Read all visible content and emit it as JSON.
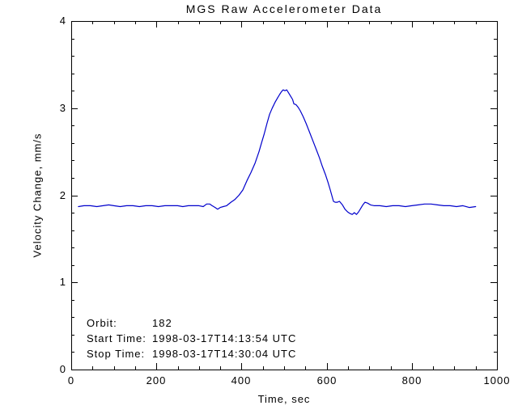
{
  "title": "MGS Raw Accelerometer Data",
  "colors": {
    "background": "#ffffff",
    "axis": "#000000",
    "text": "#000000",
    "line": "#0000cc"
  },
  "annotations": [
    {
      "label": "Orbit:",
      "value": "182"
    },
    {
      "label": "Start Time:",
      "value": "1998-03-17T14:13:54 UTC"
    },
    {
      "label": "Stop Time:",
      "value": "1998-03-17T14:30:04 UTC"
    }
  ],
  "chart_data": {
    "type": "line",
    "title": "MGS Raw Accelerometer Data",
    "xlabel": "Time, sec",
    "ylabel": "Velocity Change, mm/s",
    "xlim": [
      0,
      1000
    ],
    "ylim": [
      0,
      4
    ],
    "grid": false,
    "legend": "none",
    "xticks": {
      "major": [
        0,
        200,
        400,
        600,
        800,
        1000
      ],
      "labels": [
        "0",
        "200",
        "400",
        "600",
        "800",
        "1000"
      ],
      "minor_interval": 50
    },
    "yticks": {
      "major": [
        0,
        1,
        2,
        3,
        4
      ],
      "labels": [
        "0",
        "1",
        "2",
        "3",
        "4"
      ],
      "minor_interval": 0.2
    },
    "series": [
      {
        "name": "velocity-change",
        "color": "#0000cc",
        "points": [
          [
            17,
            1.87
          ],
          [
            30,
            1.88
          ],
          [
            45,
            1.88
          ],
          [
            60,
            1.87
          ],
          [
            75,
            1.88
          ],
          [
            88,
            1.89
          ],
          [
            100,
            1.88
          ],
          [
            115,
            1.87
          ],
          [
            130,
            1.88
          ],
          [
            145,
            1.88
          ],
          [
            160,
            1.87
          ],
          [
            175,
            1.88
          ],
          [
            190,
            1.88
          ],
          [
            205,
            1.87
          ],
          [
            220,
            1.88
          ],
          [
            235,
            1.88
          ],
          [
            250,
            1.88
          ],
          [
            262,
            1.87
          ],
          [
            275,
            1.88
          ],
          [
            289,
            1.88
          ],
          [
            300,
            1.88
          ],
          [
            310,
            1.87
          ],
          [
            318,
            1.9
          ],
          [
            325,
            1.9
          ],
          [
            331,
            1.88
          ],
          [
            338,
            1.86
          ],
          [
            344,
            1.84
          ],
          [
            350,
            1.86
          ],
          [
            357,
            1.87
          ],
          [
            365,
            1.88
          ],
          [
            375,
            1.92
          ],
          [
            384,
            1.95
          ],
          [
            394,
            2.0
          ],
          [
            403,
            2.06
          ],
          [
            413,
            2.17
          ],
          [
            422,
            2.26
          ],
          [
            432,
            2.37
          ],
          [
            441,
            2.5
          ],
          [
            447,
            2.6
          ],
          [
            453,
            2.7
          ],
          [
            460,
            2.83
          ],
          [
            466,
            2.93
          ],
          [
            472,
            3.0
          ],
          [
            479,
            3.07
          ],
          [
            485,
            3.12
          ],
          [
            490,
            3.16
          ],
          [
            494,
            3.19
          ],
          [
            498,
            3.21
          ],
          [
            502,
            3.2
          ],
          [
            506,
            3.21
          ],
          [
            510,
            3.18
          ],
          [
            515,
            3.14
          ],
          [
            520,
            3.1
          ],
          [
            523,
            3.05
          ],
          [
            528,
            3.04
          ],
          [
            533,
            3.01
          ],
          [
            538,
            2.97
          ],
          [
            545,
            2.9
          ],
          [
            552,
            2.82
          ],
          [
            560,
            2.72
          ],
          [
            568,
            2.62
          ],
          [
            576,
            2.52
          ],
          [
            583,
            2.43
          ],
          [
            590,
            2.33
          ],
          [
            597,
            2.24
          ],
          [
            603,
            2.15
          ],
          [
            608,
            2.07
          ],
          [
            612,
            2.0
          ],
          [
            616,
            1.93
          ],
          [
            620,
            1.92
          ],
          [
            625,
            1.92
          ],
          [
            630,
            1.93
          ],
          [
            637,
            1.89
          ],
          [
            643,
            1.84
          ],
          [
            649,
            1.81
          ],
          [
            655,
            1.79
          ],
          [
            660,
            1.78
          ],
          [
            665,
            1.8
          ],
          [
            670,
            1.78
          ],
          [
            675,
            1.81
          ],
          [
            680,
            1.85
          ],
          [
            685,
            1.89
          ],
          [
            690,
            1.92
          ],
          [
            696,
            1.91
          ],
          [
            703,
            1.89
          ],
          [
            712,
            1.88
          ],
          [
            725,
            1.88
          ],
          [
            740,
            1.87
          ],
          [
            755,
            1.88
          ],
          [
            770,
            1.88
          ],
          [
            785,
            1.87
          ],
          [
            800,
            1.88
          ],
          [
            815,
            1.89
          ],
          [
            830,
            1.9
          ],
          [
            845,
            1.9
          ],
          [
            860,
            1.89
          ],
          [
            875,
            1.88
          ],
          [
            890,
            1.88
          ],
          [
            905,
            1.87
          ],
          [
            920,
            1.88
          ],
          [
            935,
            1.86
          ],
          [
            950,
            1.87
          ]
        ]
      }
    ]
  }
}
